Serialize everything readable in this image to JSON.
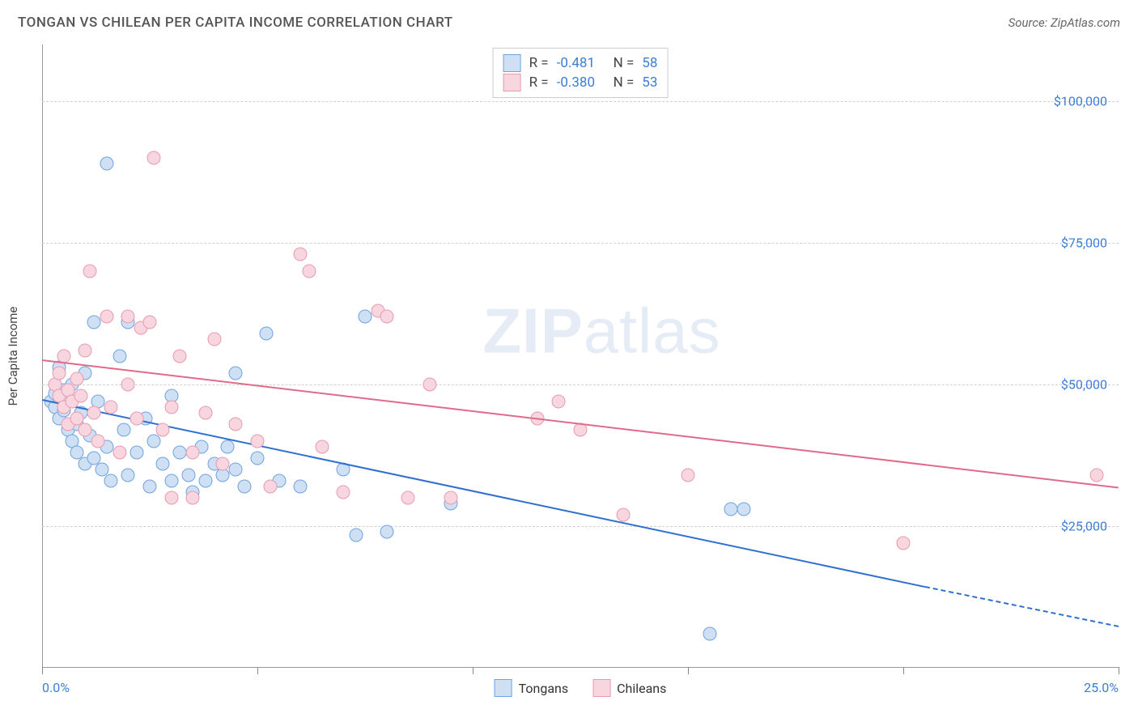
{
  "title": "TONGAN VS CHILEAN PER CAPITA INCOME CORRELATION CHART",
  "source": "Source: ZipAtlas.com",
  "watermark_bold": "ZIP",
  "watermark_rest": "atlas",
  "ylabel": "Per Capita Income",
  "chart": {
    "type": "scatter",
    "xlim": [
      0,
      25
    ],
    "ylim": [
      0,
      110000
    ],
    "x_ticks": [
      0,
      5,
      10,
      15,
      20,
      25
    ],
    "x_tick_labels": {
      "0": "0.0%",
      "25": "25.0%"
    },
    "y_gridlines": [
      25000,
      50000,
      75000,
      100000
    ],
    "y_tick_labels": {
      "25000": "$25,000",
      "50000": "$50,000",
      "75000": "$75,000",
      "100000": "$100,000"
    },
    "background_color": "#ffffff",
    "grid_color": "#d0d0d0",
    "axis_color": "#999999",
    "tick_label_color": "#3b7dd8",
    "point_radius": 8.5,
    "series": [
      {
        "name": "Tongans",
        "fill": "#cfe0f5",
        "stroke": "#6fa3e0",
        "line_color": "#2f6fd0",
        "R": "-0.481",
        "N": "58",
        "trend": {
          "x1": 0,
          "y1": 47500,
          "x2": 20.5,
          "y2": 14500,
          "dash_to_x": 25,
          "dash_to_y": 7500
        },
        "points": [
          [
            0.2,
            47000
          ],
          [
            0.3,
            48500
          ],
          [
            0.3,
            46000
          ],
          [
            0.4,
            53000
          ],
          [
            0.4,
            44000
          ],
          [
            0.5,
            49000
          ],
          [
            0.5,
            45500
          ],
          [
            0.6,
            47000
          ],
          [
            0.6,
            42000
          ],
          [
            0.7,
            50000
          ],
          [
            0.7,
            40000
          ],
          [
            0.8,
            43000
          ],
          [
            0.8,
            38000
          ],
          [
            0.9,
            45000
          ],
          [
            1.0,
            52000
          ],
          [
            1.0,
            36000
          ],
          [
            1.1,
            41000
          ],
          [
            1.2,
            61000
          ],
          [
            1.2,
            37000
          ],
          [
            1.3,
            47000
          ],
          [
            1.4,
            35000
          ],
          [
            1.5,
            89000
          ],
          [
            1.5,
            39000
          ],
          [
            1.6,
            33000
          ],
          [
            1.8,
            55000
          ],
          [
            1.9,
            42000
          ],
          [
            2.0,
            34000
          ],
          [
            2.0,
            61000
          ],
          [
            2.2,
            38000
          ],
          [
            2.4,
            44000
          ],
          [
            2.5,
            32000
          ],
          [
            2.6,
            40000
          ],
          [
            2.8,
            36000
          ],
          [
            3.0,
            48000
          ],
          [
            3.0,
            33000
          ],
          [
            3.2,
            38000
          ],
          [
            3.4,
            34000
          ],
          [
            3.5,
            31000
          ],
          [
            3.7,
            39000
          ],
          [
            3.8,
            33000
          ],
          [
            4.0,
            36000
          ],
          [
            4.2,
            34000
          ],
          [
            4.3,
            39000
          ],
          [
            4.5,
            35000
          ],
          [
            4.5,
            52000
          ],
          [
            4.7,
            32000
          ],
          [
            5.0,
            37000
          ],
          [
            5.2,
            59000
          ],
          [
            5.5,
            33000
          ],
          [
            6.0,
            32000
          ],
          [
            7.0,
            35000
          ],
          [
            7.3,
            23500
          ],
          [
            7.5,
            62000
          ],
          [
            8.0,
            24000
          ],
          [
            9.5,
            29000
          ],
          [
            16.0,
            28000
          ],
          [
            16.3,
            28000
          ],
          [
            15.5,
            6000
          ]
        ]
      },
      {
        "name": "Chileans",
        "fill": "#f7d6df",
        "stroke": "#e99ab0",
        "line_color": "#e06a8a",
        "R": "-0.380",
        "N": "53",
        "trend": {
          "x1": 0,
          "y1": 54500,
          "x2": 25,
          "y2": 32000
        },
        "points": [
          [
            0.3,
            50000
          ],
          [
            0.4,
            48000
          ],
          [
            0.4,
            52000
          ],
          [
            0.5,
            46000
          ],
          [
            0.5,
            55000
          ],
          [
            0.6,
            49000
          ],
          [
            0.6,
            43000
          ],
          [
            0.7,
            47000
          ],
          [
            0.8,
            51000
          ],
          [
            0.8,
            44000
          ],
          [
            0.9,
            48000
          ],
          [
            1.0,
            42000
          ],
          [
            1.0,
            56000
          ],
          [
            1.1,
            70000
          ],
          [
            1.2,
            45000
          ],
          [
            1.3,
            40000
          ],
          [
            1.5,
            62000
          ],
          [
            1.6,
            46000
          ],
          [
            1.8,
            38000
          ],
          [
            2.0,
            50000
          ],
          [
            2.0,
            62000
          ],
          [
            2.2,
            44000
          ],
          [
            2.3,
            60000
          ],
          [
            2.5,
            61000
          ],
          [
            2.6,
            90000
          ],
          [
            2.8,
            42000
          ],
          [
            3.0,
            30000
          ],
          [
            3.0,
            46000
          ],
          [
            3.2,
            55000
          ],
          [
            3.5,
            38000
          ],
          [
            3.5,
            30000
          ],
          [
            3.8,
            45000
          ],
          [
            4.0,
            58000
          ],
          [
            4.2,
            36000
          ],
          [
            4.5,
            43000
          ],
          [
            5.0,
            40000
          ],
          [
            5.3,
            32000
          ],
          [
            6.0,
            73000
          ],
          [
            6.2,
            70000
          ],
          [
            6.5,
            39000
          ],
          [
            7.0,
            31000
          ],
          [
            7.8,
            63000
          ],
          [
            8.0,
            62000
          ],
          [
            8.5,
            30000
          ],
          [
            9.0,
            50000
          ],
          [
            9.5,
            30000
          ],
          [
            12.0,
            47000
          ],
          [
            12.5,
            42000
          ],
          [
            13.5,
            27000
          ],
          [
            15.0,
            34000
          ],
          [
            20.0,
            22000
          ],
          [
            24.5,
            34000
          ],
          [
            11.5,
            44000
          ]
        ]
      }
    ]
  },
  "stats_labels": {
    "R": "R =",
    "N": "N ="
  },
  "footer_legend": [
    "Tongans",
    "Chileans"
  ]
}
